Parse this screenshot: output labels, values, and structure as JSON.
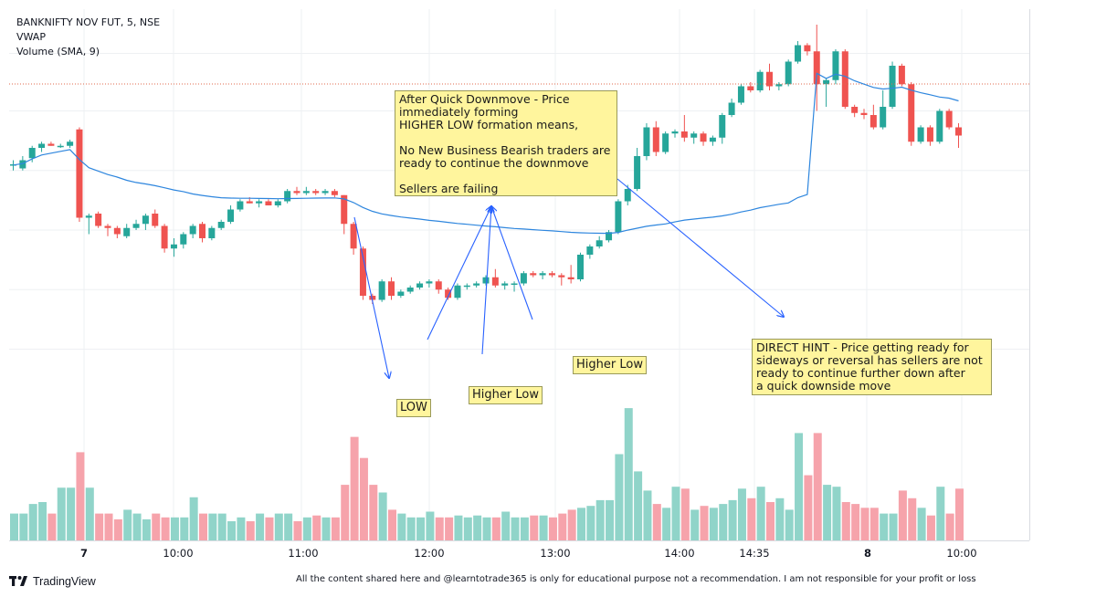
{
  "header": {
    "symbol": "BANKNIFTY NOV FUT, 5, NSE",
    "indicator1": "VWAP",
    "indicator2": "Volume (SMA, 9)"
  },
  "colors": {
    "bull": "#26a69a",
    "bear": "#ef5350",
    "vol_bull": "#90d4c9",
    "vol_bear": "#f6a3ab",
    "vwap": "#2e86de",
    "arrow": "#2962ff",
    "note_bg": "#fff59d",
    "grid": "#eef0f3"
  },
  "chart_data": {
    "type": "candlestick",
    "x_ticks": [
      "7",
      "10:00",
      "11:00",
      "12:00",
      "13:00",
      "14:00",
      "14:35",
      "8",
      "10:00"
    ],
    "candles": [
      {
        "o": 54,
        "h": 55,
        "l": 52.5,
        "c": 54
      },
      {
        "o": 53,
        "h": 56,
        "l": 52.5,
        "c": 55
      },
      {
        "o": 55.5,
        "h": 58.5,
        "l": 54.5,
        "c": 58
      },
      {
        "o": 58,
        "h": 59.5,
        "l": 57,
        "c": 59
      },
      {
        "o": 59,
        "h": 59.5,
        "l": 58.5,
        "c": 58.5
      },
      {
        "o": 58.5,
        "h": 59,
        "l": 58,
        "c": 58.5
      },
      {
        "o": 58.5,
        "h": 60,
        "l": 58,
        "c": 59.5
      },
      {
        "o": 62.5,
        "h": 63,
        "l": 40,
        "c": 41
      },
      {
        "o": 41,
        "h": 42,
        "l": 37,
        "c": 41.5
      },
      {
        "o": 42,
        "h": 42.5,
        "l": 38.5,
        "c": 39
      },
      {
        "o": 39,
        "h": 39.5,
        "l": 36.5,
        "c": 38.5
      },
      {
        "o": 38.5,
        "h": 39,
        "l": 36,
        "c": 37
      },
      {
        "o": 36.5,
        "h": 39.5,
        "l": 36,
        "c": 38.5
      },
      {
        "o": 38.5,
        "h": 40.5,
        "l": 38,
        "c": 39.5
      },
      {
        "o": 39.5,
        "h": 42,
        "l": 38,
        "c": 41.5
      },
      {
        "o": 42,
        "h": 43,
        "l": 38.5,
        "c": 39
      },
      {
        "o": 39,
        "h": 39.5,
        "l": 32.5,
        "c": 33.5
      },
      {
        "o": 33.5,
        "h": 36,
        "l": 31.5,
        "c": 34.5
      },
      {
        "o": 34.5,
        "h": 37.5,
        "l": 33.5,
        "c": 37
      },
      {
        "o": 37,
        "h": 39.5,
        "l": 36,
        "c": 39
      },
      {
        "o": 39.5,
        "h": 40,
        "l": 35,
        "c": 36
      },
      {
        "o": 36,
        "h": 39,
        "l": 35.5,
        "c": 38.5
      },
      {
        "o": 38.5,
        "h": 40.5,
        "l": 38,
        "c": 40
      },
      {
        "o": 40,
        "h": 44,
        "l": 39.5,
        "c": 43
      },
      {
        "o": 43,
        "h": 45.5,
        "l": 42.5,
        "c": 45
      },
      {
        "o": 45,
        "h": 46,
        "l": 44.5,
        "c": 44.5
      },
      {
        "o": 44.5,
        "h": 45.5,
        "l": 43.5,
        "c": 45
      },
      {
        "o": 45,
        "h": 45.5,
        "l": 44,
        "c": 44
      },
      {
        "o": 44,
        "h": 45.5,
        "l": 43.5,
        "c": 45
      },
      {
        "o": 45,
        "h": 48,
        "l": 44.5,
        "c": 47.5
      },
      {
        "o": 47.5,
        "h": 48.5,
        "l": 46.5,
        "c": 47
      },
      {
        "o": 47,
        "h": 48.5,
        "l": 46.5,
        "c": 47.5
      },
      {
        "o": 47.5,
        "h": 48,
        "l": 46.5,
        "c": 47
      },
      {
        "o": 47,
        "h": 48,
        "l": 46.5,
        "c": 47.5
      },
      {
        "o": 47.5,
        "h": 48,
        "l": 46,
        "c": 46.5
      },
      {
        "o": 46.5,
        "h": 46.5,
        "l": 37,
        "c": 39.5
      },
      {
        "o": 39.5,
        "h": 40,
        "l": 32,
        "c": 33.5
      },
      {
        "o": 33.5,
        "h": 34,
        "l": 21,
        "c": 22
      },
      {
        "o": 22,
        "h": 22.5,
        "l": 20,
        "c": 21
      },
      {
        "o": 21,
        "h": 26,
        "l": 20.5,
        "c": 25.5
      },
      {
        "o": 25.5,
        "h": 26.5,
        "l": 21,
        "c": 22
      },
      {
        "o": 22,
        "h": 23.5,
        "l": 21.5,
        "c": 23
      },
      {
        "o": 23,
        "h": 24.5,
        "l": 22.5,
        "c": 24
      },
      {
        "o": 24,
        "h": 25.5,
        "l": 23.5,
        "c": 25
      },
      {
        "o": 25,
        "h": 26,
        "l": 24,
        "c": 25.5
      },
      {
        "o": 25.5,
        "h": 26,
        "l": 22.5,
        "c": 23.5
      },
      {
        "o": 23.5,
        "h": 24,
        "l": 21,
        "c": 21.5
      },
      {
        "o": 21.5,
        "h": 25,
        "l": 21,
        "c": 24.5
      },
      {
        "o": 24.5,
        "h": 25,
        "l": 23.5,
        "c": 24.5
      },
      {
        "o": 24.5,
        "h": 25.5,
        "l": 24,
        "c": 25
      },
      {
        "o": 25,
        "h": 27,
        "l": 24.5,
        "c": 26.5
      },
      {
        "o": 26.5,
        "h": 28.5,
        "l": 24,
        "c": 24.5
      },
      {
        "o": 24.5,
        "h": 25.5,
        "l": 23.5,
        "c": 25
      },
      {
        "o": 25,
        "h": 25.5,
        "l": 23,
        "c": 25
      },
      {
        "o": 25,
        "h": 28,
        "l": 24.5,
        "c": 27.5
      },
      {
        "o": 27.5,
        "h": 28,
        "l": 26.5,
        "c": 27
      },
      {
        "o": 27,
        "h": 28,
        "l": 26,
        "c": 27.5
      },
      {
        "o": 27.5,
        "h": 28,
        "l": 26.5,
        "c": 27
      },
      {
        "o": 27,
        "h": 27.5,
        "l": 24.5,
        "c": 26.5
      },
      {
        "o": 26.5,
        "h": 29.5,
        "l": 25,
        "c": 26
      },
      {
        "o": 26,
        "h": 32.5,
        "l": 25.5,
        "c": 32
      },
      {
        "o": 32,
        "h": 34.5,
        "l": 31,
        "c": 34
      },
      {
        "o": 34,
        "h": 36.5,
        "l": 33.5,
        "c": 35.5
      },
      {
        "o": 35.5,
        "h": 38,
        "l": 35,
        "c": 37.5
      },
      {
        "o": 37.5,
        "h": 45.5,
        "l": 37,
        "c": 45
      },
      {
        "o": 45,
        "h": 49,
        "l": 44,
        "c": 48
      },
      {
        "o": 48,
        "h": 58,
        "l": 47.5,
        "c": 56
      },
      {
        "o": 56,
        "h": 64,
        "l": 55,
        "c": 63
      },
      {
        "o": 63,
        "h": 64.5,
        "l": 56,
        "c": 57
      },
      {
        "o": 57,
        "h": 62,
        "l": 56.5,
        "c": 61.5
      },
      {
        "o": 61.5,
        "h": 62.5,
        "l": 60.5,
        "c": 62
      },
      {
        "o": 62,
        "h": 66,
        "l": 59.5,
        "c": 60.5
      },
      {
        "o": 60.5,
        "h": 62,
        "l": 59,
        "c": 61.5
      },
      {
        "o": 61.5,
        "h": 62,
        "l": 58.5,
        "c": 59.5
      },
      {
        "o": 59.5,
        "h": 61,
        "l": 58.5,
        "c": 60.5
      },
      {
        "o": 60.5,
        "h": 66.5,
        "l": 59,
        "c": 66
      },
      {
        "o": 66,
        "h": 70,
        "l": 65.5,
        "c": 69
      },
      {
        "o": 69,
        "h": 73.5,
        "l": 68.5,
        "c": 73
      },
      {
        "o": 73,
        "h": 74,
        "l": 71.5,
        "c": 72
      },
      {
        "o": 72,
        "h": 77,
        "l": 71.5,
        "c": 76.5
      },
      {
        "o": 76.5,
        "h": 78.5,
        "l": 72,
        "c": 73
      },
      {
        "o": 73,
        "h": 74,
        "l": 72,
        "c": 73.5
      },
      {
        "o": 73.5,
        "h": 79.5,
        "l": 73,
        "c": 79
      },
      {
        "o": 79,
        "h": 84,
        "l": 78.5,
        "c": 83
      },
      {
        "o": 83,
        "h": 83.5,
        "l": 80.5,
        "c": 81.5
      },
      {
        "o": 81.5,
        "h": 88,
        "l": 67,
        "c": 73.5
      },
      {
        "o": 73.5,
        "h": 75,
        "l": 68,
        "c": 74.5
      },
      {
        "o": 74.5,
        "h": 82,
        "l": 73.5,
        "c": 81.5
      },
      {
        "o": 81.5,
        "h": 82,
        "l": 67.5,
        "c": 68
      },
      {
        "o": 68,
        "h": 68.5,
        "l": 65.5,
        "c": 66.5
      },
      {
        "o": 66.5,
        "h": 67.5,
        "l": 65,
        "c": 66
      },
      {
        "o": 66,
        "h": 68.5,
        "l": 62.5,
        "c": 63
      },
      {
        "o": 63,
        "h": 72,
        "l": 62.5,
        "c": 68
      },
      {
        "o": 68,
        "h": 79,
        "l": 67.5,
        "c": 78
      },
      {
        "o": 78,
        "h": 78.5,
        "l": 73,
        "c": 73.5
      },
      {
        "o": 73.5,
        "h": 74,
        "l": 58.5,
        "c": 59.5
      },
      {
        "o": 59.5,
        "h": 63.5,
        "l": 59,
        "c": 63
      },
      {
        "o": 63,
        "h": 63.5,
        "l": 58.5,
        "c": 59.5
      },
      {
        "o": 59.5,
        "h": 67.5,
        "l": 59,
        "c": 67
      },
      {
        "o": 67,
        "h": 67.5,
        "l": 62.5,
        "c": 63
      },
      {
        "o": 63,
        "h": 64,
        "l": 58,
        "c": 61
      }
    ],
    "volume": [
      28,
      28,
      38,
      40,
      28,
      55,
      55,
      92,
      55,
      28,
      28,
      22,
      32,
      28,
      22,
      28,
      24,
      24,
      24,
      45,
      28,
      28,
      28,
      20,
      24,
      20,
      28,
      24,
      28,
      28,
      20,
      24,
      26,
      24,
      24,
      58,
      108,
      86,
      58,
      50,
      32,
      28,
      24,
      24,
      30,
      24,
      24,
      26,
      24,
      26,
      24,
      24,
      30,
      24,
      24,
      26,
      26,
      24,
      28,
      32,
      34,
      36,
      42,
      42,
      90,
      138,
      72,
      52,
      38,
      34,
      56,
      54,
      32,
      36,
      34,
      38,
      42,
      54,
      44,
      56,
      40,
      44,
      32,
      112,
      68,
      112,
      58,
      56,
      40,
      38,
      34,
      34,
      28,
      28,
      52,
      44,
      34,
      26,
      56,
      28,
      54
    ]
  },
  "notes": {
    "box1": "After Quick Downmove - Price\nimmediately forming\nHIGHER LOW formation means,\n\nNo New Business Bearish traders are\nready to continue the downmove\n\nSellers are failing",
    "box2": "DIRECT HINT - Price getting ready for\nsideways or reversal has sellers are not\nready to continue further down after\na quick downside move",
    "tag_low": "LOW",
    "tag_hl1": "Higher Low",
    "tag_hl2": "Higher Low"
  },
  "footer": {
    "brand": "TradingView",
    "disclaimer": "All the content shared here and @learntotrade365 is only for educational purpose not a recommendation. I am not responsible for your profit or loss"
  }
}
